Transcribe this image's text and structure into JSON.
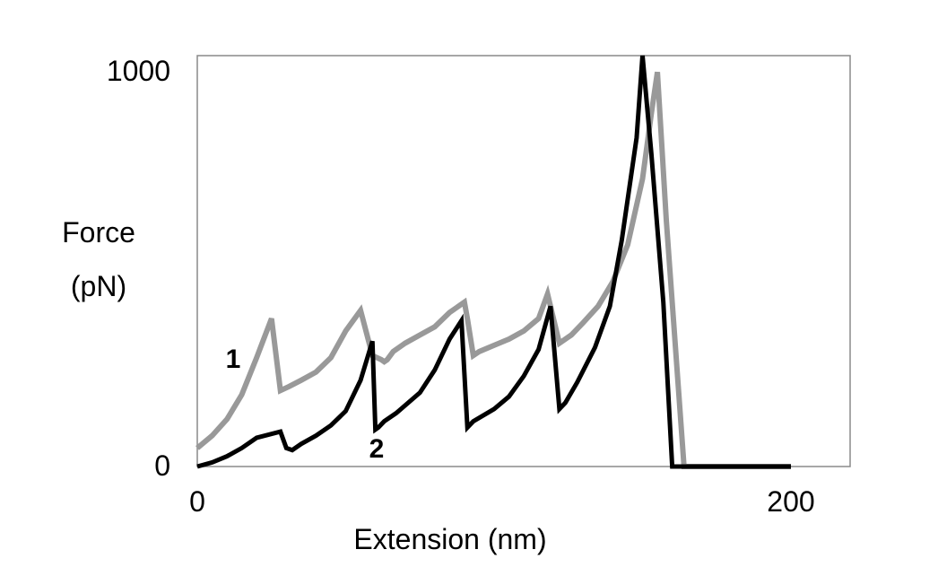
{
  "chart_data": {
    "type": "line",
    "title": "",
    "xlabel": "Extension (nm)",
    "ylabel_line1": "Force",
    "ylabel_line2": "(pN)",
    "xlim": [
      0,
      200
    ],
    "ylim": [
      0,
      1000
    ],
    "x_ticks": [
      "0",
      "200"
    ],
    "y_ticks": [
      "0",
      "1000"
    ],
    "grid": false,
    "legend": "none",
    "series": [
      {
        "name": "1",
        "color": "#999999",
        "x": [
          0,
          5,
          10,
          15,
          20,
          25,
          28,
          31,
          35,
          40,
          45,
          50,
          55,
          59,
          62,
          63,
          64,
          66,
          70,
          75,
          80,
          85,
          90,
          91,
          93,
          95,
          100,
          105,
          110,
          115,
          118,
          122,
          126,
          130,
          135,
          140,
          145,
          150,
          153,
          155,
          158,
          161,
          164,
          168,
          175,
          200
        ],
        "y": [
          45,
          75,
          115,
          175,
          265,
          360,
          185,
          195,
          210,
          230,
          265,
          330,
          380,
          270,
          260,
          255,
          260,
          280,
          300,
          320,
          340,
          375,
          400,
          360,
          270,
          280,
          295,
          310,
          330,
          360,
          420,
          300,
          320,
          350,
          390,
          450,
          540,
          700,
          860,
          960,
          600,
          300,
          0,
          0,
          0,
          0
        ]
      },
      {
        "name": "2",
        "color": "#000000",
        "x": [
          0,
          5,
          10,
          15,
          20,
          28,
          30,
          32,
          35,
          40,
          45,
          50,
          55,
          59,
          60,
          61,
          63,
          67,
          75,
          80,
          85,
          89,
          91,
          93,
          100,
          105,
          110,
          115,
          119,
          122,
          124,
          128,
          134,
          139,
          143,
          148,
          150,
          153,
          157,
          160,
          162,
          164,
          166,
          175,
          200
        ],
        "y": [
          0,
          10,
          25,
          45,
          70,
          85,
          45,
          40,
          55,
          75,
          100,
          135,
          210,
          305,
          90,
          95,
          110,
          130,
          180,
          235,
          310,
          355,
          95,
          110,
          140,
          170,
          220,
          285,
          390,
          140,
          155,
          205,
          290,
          390,
          550,
          800,
          1000,
          760,
          400,
          0,
          0,
          0,
          0,
          0,
          0
        ]
      }
    ],
    "annotations": [
      "1",
      "2"
    ]
  }
}
